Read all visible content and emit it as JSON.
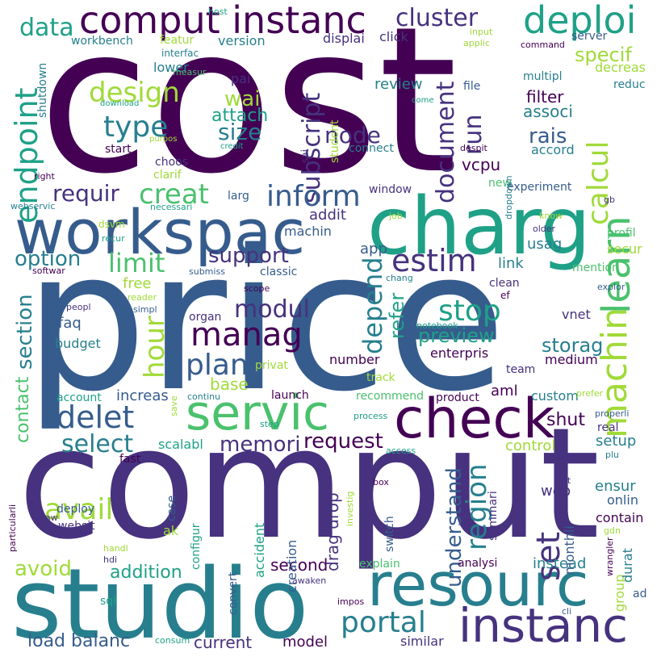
{
  "palette": {
    "dark_purple": "#440154",
    "indigo": "#46327e",
    "blue": "#365c8d",
    "teal": "#277f8e",
    "sea": "#1fa187",
    "green": "#4ac16d",
    "lime": "#a0da39",
    "yellow": "#d8e219",
    "background": "#ffffff"
  },
  "words": [
    "cost",
    "price",
    "comput",
    "studio",
    "charg",
    "workspac",
    "resourc",
    "check",
    "servic",
    "instanc",
    "learn",
    "machin",
    "comput instanc",
    "deploi",
    "endpoint",
    "calcul",
    "cluster",
    "data",
    "design",
    "type",
    "subscript",
    "document",
    "run",
    "inform",
    "estim",
    "manag",
    "plan",
    "hour",
    "delet",
    "select",
    "memori",
    "request",
    "portal",
    "stop",
    "region",
    "set",
    "understand",
    "avail",
    "load balanc",
    "avoid",
    "addition",
    "second",
    "current",
    "model",
    "limit",
    "support",
    "option",
    "modul",
    "depend",
    "refer",
    "preview",
    "storag",
    "creat",
    "requir",
    "node",
    "specif",
    "wai",
    "size",
    "attach",
    "review",
    "filter",
    "associ",
    "rais",
    "accord",
    "vcpu",
    "featur",
    "version",
    "workbench",
    "click",
    "displai",
    "interfac",
    "lower",
    "pai",
    "base",
    "free",
    "faq",
    "budget",
    "section",
    "contact",
    "increas",
    "launch",
    "number",
    "enterpris",
    "medium",
    "aml",
    "shut",
    "custom",
    "control",
    "setup",
    "scalabl",
    "fast",
    "deploy",
    "websit",
    "ak",
    "case",
    "configur",
    "accident",
    "creation",
    "drag drop",
    "switch",
    "web",
    "ensur",
    "onlin",
    "contain",
    "group",
    "durat",
    "instead",
    "analysi",
    "explain",
    "monthli",
    "summari",
    "similar",
    "ad",
    "sql",
    "convert",
    "shutdown",
    "download",
    "start",
    "purpos",
    "credit",
    "choos",
    "clarif",
    "larg",
    "window",
    "new",
    "experiment",
    "addit",
    "machin",
    "app",
    "usag",
    "link",
    "mention",
    "secur",
    "profil",
    "multipl",
    "reduc",
    "decreas",
    "server",
    "command",
    "applic",
    "input",
    "host",
    "file",
    "come",
    "student",
    "despit",
    "connect",
    "sai",
    "right",
    "webservic",
    "necessari",
    "dsvm",
    "recur",
    "softwar",
    "submiss",
    "classic",
    "scope",
    "reader",
    "simpl",
    "peopl",
    "organ",
    "privat",
    "clean",
    "ef",
    "chang",
    "explor",
    "vnet",
    "team",
    "notebook",
    "track",
    "recommend",
    "product",
    "prefer",
    "account",
    "continu",
    "save",
    "step",
    "process",
    "access",
    "real",
    "properli",
    "plu",
    "list",
    "box",
    "investig",
    "particularli",
    "aw",
    "handl",
    "hdi",
    "awaken",
    "impos",
    "cli",
    "wrangler",
    "consum",
    "gdn",
    "gb",
    "older",
    "know",
    "job",
    "dropdown",
    "measur"
  ]
}
